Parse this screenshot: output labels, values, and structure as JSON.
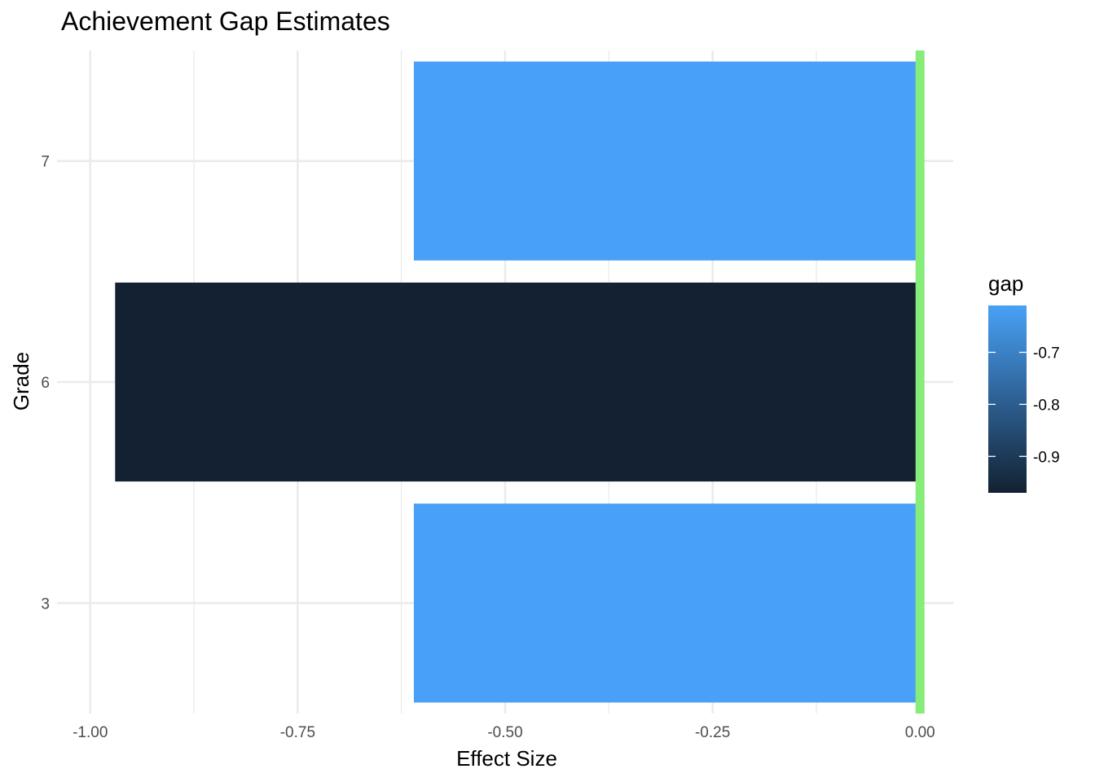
{
  "chart_data": {
    "type": "bar",
    "orientation": "horizontal",
    "title": "Achievement Gap Estimates",
    "xlabel": "Effect Size",
    "ylabel": "Grade",
    "categories": [
      "3",
      "6",
      "7"
    ],
    "values": [
      -0.61,
      -0.97,
      -0.61
    ],
    "xlim": [
      -1.04,
      0.04
    ],
    "x_ticks": [
      -1.0,
      -0.75,
      -0.5,
      -0.25,
      0.0
    ],
    "x_tick_labels": [
      "-1.00",
      "-0.75",
      "-0.50",
      "-0.25",
      "0.00"
    ],
    "reference_line": {
      "x": 0,
      "color": "#86ec7a"
    },
    "color_scale": {
      "name": "gap",
      "low_value": -0.97,
      "high_value": -0.61,
      "low_color": "#132132",
      "high_color": "#48a1f6",
      "breaks": [
        -0.7,
        -0.8,
        -0.9
      ],
      "break_labels": [
        "-0.7",
        "-0.8",
        "-0.9"
      ]
    },
    "grid": true,
    "legend_position": "right"
  }
}
